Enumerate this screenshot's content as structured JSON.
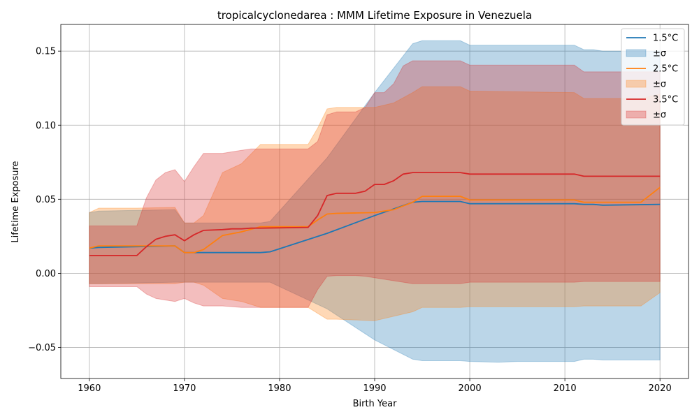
{
  "chart_data": {
    "type": "line",
    "title": "tropicalcyclonedarea : MMM Lifetime Exposure in Venezuela",
    "xlabel": "Birth Year",
    "ylabel": "Lifetime Exposure",
    "xlim": [
      1957,
      2023
    ],
    "ylim": [
      -0.071,
      0.168
    ],
    "xticks": [
      1960,
      1970,
      1980,
      1990,
      2000,
      2010,
      2020
    ],
    "yticks": [
      -0.05,
      0.0,
      0.05,
      0.1,
      0.15
    ],
    "ytick_labels": [
      "−0.05",
      "0.00",
      "0.05",
      "0.10",
      "0.15"
    ],
    "grid": true,
    "legend_position": "top-right",
    "series": [
      {
        "name": "1.5°C",
        "band_label": "±σ",
        "color": "#1f77b4",
        "x": [
          1960,
          1961,
          1965,
          1969,
          1970,
          1978,
          1979,
          1985,
          1990,
          1994,
          1995,
          1999,
          2000,
          2003,
          2005,
          2011,
          2012,
          2013,
          2014,
          2020
        ],
        "values": [
          0.017,
          0.0175,
          0.018,
          0.0185,
          0.014,
          0.014,
          0.0145,
          0.027,
          0.039,
          0.048,
          0.0485,
          0.0485,
          0.047,
          0.047,
          0.047,
          0.047,
          0.0465,
          0.0465,
          0.046,
          0.0465
        ],
        "upper": [
          0.041,
          0.042,
          0.0425,
          0.043,
          0.034,
          0.034,
          0.035,
          0.078,
          0.122,
          0.155,
          0.157,
          0.157,
          0.154,
          0.154,
          0.154,
          0.154,
          0.151,
          0.151,
          0.15,
          0.15
        ],
        "lower": [
          -0.007,
          -0.007,
          -0.0065,
          -0.006,
          -0.006,
          -0.006,
          -0.006,
          -0.024,
          -0.045,
          -0.058,
          -0.059,
          -0.059,
          -0.0595,
          -0.06,
          -0.0595,
          -0.0595,
          -0.058,
          -0.058,
          -0.0585,
          -0.0585
        ]
      },
      {
        "name": "2.5°C",
        "band_label": "±σ",
        "color": "#ff7f0e",
        "x": [
          1960,
          1961,
          1965,
          1969,
          1970,
          1971,
          1972,
          1974,
          1976,
          1978,
          1983,
          1984,
          1985,
          1986,
          1990,
          1992,
          1994,
          1995,
          1999,
          2000,
          2011,
          2012,
          2014,
          2018,
          2020
        ],
        "values": [
          0.017,
          0.0185,
          0.0185,
          0.0185,
          0.014,
          0.014,
          0.016,
          0.0255,
          0.028,
          0.0315,
          0.0315,
          0.036,
          0.04,
          0.0405,
          0.041,
          0.043,
          0.048,
          0.052,
          0.052,
          0.0495,
          0.0495,
          0.048,
          0.048,
          0.048,
          0.058
        ],
        "upper": [
          0.041,
          0.044,
          0.044,
          0.0445,
          0.034,
          0.034,
          0.039,
          0.068,
          0.074,
          0.087,
          0.087,
          0.098,
          0.111,
          0.112,
          0.112,
          0.115,
          0.122,
          0.126,
          0.126,
          0.123,
          0.122,
          0.118,
          0.118,
          0.118,
          0.121
        ],
        "lower": [
          -0.007,
          -0.007,
          -0.007,
          -0.007,
          -0.006,
          -0.006,
          -0.008,
          -0.017,
          -0.019,
          -0.023,
          -0.023,
          -0.027,
          -0.031,
          -0.031,
          -0.032,
          -0.029,
          -0.026,
          -0.023,
          -0.023,
          -0.0225,
          -0.0225,
          -0.022,
          -0.022,
          -0.022,
          -0.013
        ]
      },
      {
        "name": "3.5°C",
        "band_label": "±σ",
        "color": "#d62728",
        "x": [
          1960,
          1961,
          1965,
          1966,
          1967,
          1968,
          1969,
          1970,
          1971,
          1972,
          1974,
          1975,
          1976,
          1977,
          1978,
          1983,
          1984,
          1985,
          1986,
          1988,
          1989,
          1990,
          1991,
          1992,
          1993,
          1994,
          1999,
          2000,
          2011,
          2012,
          2020
        ],
        "values": [
          0.012,
          0.012,
          0.012,
          0.018,
          0.023,
          0.025,
          0.026,
          0.022,
          0.026,
          0.029,
          0.0295,
          0.03,
          0.03,
          0.0305,
          0.0305,
          0.031,
          0.039,
          0.0525,
          0.054,
          0.054,
          0.0555,
          0.06,
          0.06,
          0.0625,
          0.067,
          0.068,
          0.068,
          0.067,
          0.067,
          0.0655,
          0.0655
        ],
        "upper": [
          0.032,
          0.032,
          0.032,
          0.051,
          0.063,
          0.068,
          0.07,
          0.062,
          0.072,
          0.081,
          0.081,
          0.082,
          0.083,
          0.084,
          0.084,
          0.084,
          0.089,
          0.107,
          0.109,
          0.109,
          0.112,
          0.122,
          0.122,
          0.128,
          0.14,
          0.1435,
          0.1435,
          0.1405,
          0.1405,
          0.136,
          0.136
        ],
        "lower": [
          -0.009,
          -0.009,
          -0.009,
          -0.014,
          -0.017,
          -0.018,
          -0.019,
          -0.017,
          -0.02,
          -0.022,
          -0.022,
          -0.0225,
          -0.023,
          -0.023,
          -0.023,
          -0.023,
          -0.011,
          -0.002,
          -0.0015,
          -0.0015,
          -0.002,
          -0.003,
          -0.004,
          -0.005,
          -0.006,
          -0.007,
          -0.007,
          -0.006,
          -0.006,
          -0.0055,
          -0.0055
        ]
      }
    ]
  }
}
